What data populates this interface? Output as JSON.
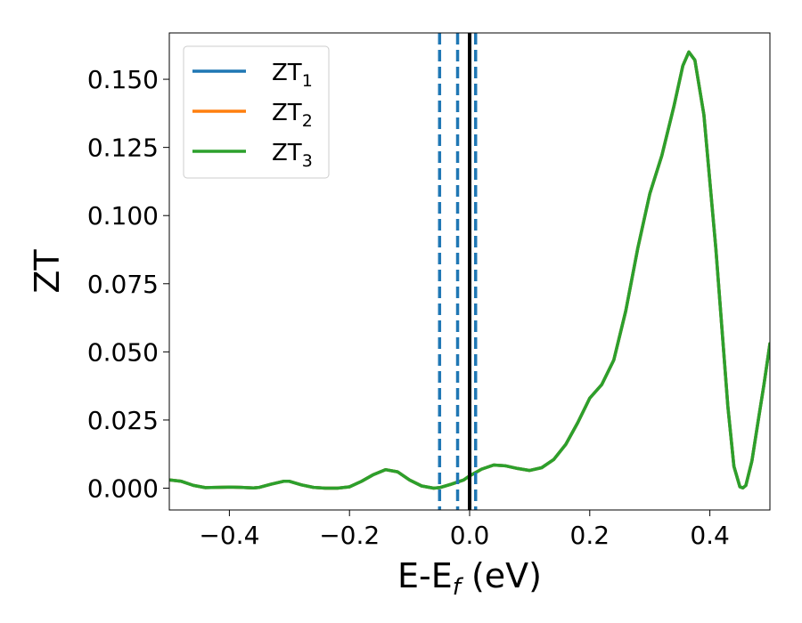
{
  "chart_data": {
    "type": "line",
    "title": "",
    "xlabel": "E-E",
    "xlabel_sub": "f",
    "xlabel_unit": " (eV)",
    "ylabel": "ZT",
    "xlim": [
      -0.5,
      0.5
    ],
    "ylim": [
      -0.008,
      0.167
    ],
    "xticks": [
      -0.4,
      -0.2,
      0.0,
      0.2,
      0.4
    ],
    "xtick_labels": [
      "−0.4",
      "−0.2",
      "0.0",
      "0.2",
      "0.4"
    ],
    "yticks": [
      0.0,
      0.025,
      0.05,
      0.075,
      0.1,
      0.125,
      0.15
    ],
    "ytick_labels": [
      "0.000",
      "0.025",
      "0.050",
      "0.075",
      "0.100",
      "0.125",
      "0.150"
    ],
    "grid": false,
    "legend_position": "top-left",
    "x": [
      -0.5,
      -0.48,
      -0.46,
      -0.44,
      -0.42,
      -0.4,
      -0.38,
      -0.36,
      -0.35,
      -0.33,
      -0.31,
      -0.3,
      -0.28,
      -0.26,
      -0.24,
      -0.22,
      -0.2,
      -0.18,
      -0.16,
      -0.14,
      -0.12,
      -0.1,
      -0.08,
      -0.06,
      -0.05,
      -0.03,
      -0.01,
      0.0,
      0.02,
      0.04,
      0.06,
      0.08,
      0.1,
      0.12,
      0.14,
      0.16,
      0.18,
      0.2,
      0.22,
      0.24,
      0.26,
      0.28,
      0.3,
      0.32,
      0.34,
      0.355,
      0.365,
      0.375,
      0.39,
      0.41,
      0.43,
      0.44,
      0.45,
      0.455,
      0.46,
      0.47,
      0.48,
      0.49,
      0.5
    ],
    "series": [
      {
        "name": "ZT",
        "name_sub": "1",
        "color": "#1f77b4",
        "y": [
          0.003,
          0.0025,
          0.001,
          0.0002,
          0.0003,
          0.0004,
          0.0003,
          0.0001,
          0.0003,
          0.0015,
          0.0025,
          0.0025,
          0.0012,
          0.0003,
          0.0,
          0.0,
          0.0005,
          0.0025,
          0.005,
          0.0068,
          0.006,
          0.003,
          0.0008,
          0.0,
          0.0002,
          0.0015,
          0.003,
          0.0045,
          0.007,
          0.0085,
          0.0082,
          0.0072,
          0.0065,
          0.0075,
          0.0105,
          0.016,
          0.024,
          0.033,
          0.038,
          0.047,
          0.065,
          0.088,
          0.108,
          0.122,
          0.14,
          0.155,
          0.16,
          0.157,
          0.137,
          0.088,
          0.03,
          0.008,
          0.0005,
          0.0001,
          0.001,
          0.01,
          0.024,
          0.038,
          0.053
        ]
      },
      {
        "name": "ZT",
        "name_sub": "2",
        "color": "#ff7f0e",
        "y": [
          0.003,
          0.0025,
          0.001,
          0.0002,
          0.0003,
          0.0004,
          0.0003,
          0.0001,
          0.0003,
          0.0015,
          0.0025,
          0.0025,
          0.0012,
          0.0003,
          0.0,
          0.0,
          0.0005,
          0.0025,
          0.005,
          0.0068,
          0.006,
          0.003,
          0.0008,
          0.0,
          0.0002,
          0.0015,
          0.003,
          0.0045,
          0.007,
          0.0085,
          0.0082,
          0.0072,
          0.0065,
          0.0075,
          0.0105,
          0.016,
          0.024,
          0.033,
          0.038,
          0.047,
          0.065,
          0.088,
          0.108,
          0.122,
          0.14,
          0.155,
          0.16,
          0.157,
          0.137,
          0.088,
          0.03,
          0.008,
          0.0005,
          0.0001,
          0.001,
          0.01,
          0.024,
          0.038,
          0.053
        ]
      },
      {
        "name": "ZT",
        "name_sub": "3",
        "color": "#2ca02c",
        "y": [
          0.003,
          0.0025,
          0.001,
          0.0002,
          0.0003,
          0.0004,
          0.0003,
          0.0001,
          0.0003,
          0.0015,
          0.0025,
          0.0025,
          0.0012,
          0.0003,
          0.0,
          0.0,
          0.0005,
          0.0025,
          0.005,
          0.0068,
          0.006,
          0.003,
          0.0008,
          0.0,
          0.0002,
          0.0015,
          0.003,
          0.0045,
          0.007,
          0.0085,
          0.0082,
          0.0072,
          0.0065,
          0.0075,
          0.0105,
          0.016,
          0.024,
          0.033,
          0.038,
          0.047,
          0.065,
          0.088,
          0.108,
          0.122,
          0.14,
          0.155,
          0.16,
          0.157,
          0.137,
          0.088,
          0.03,
          0.008,
          0.0005,
          0.0001,
          0.001,
          0.01,
          0.024,
          0.038,
          0.053
        ]
      }
    ],
    "vlines": [
      {
        "x": -0.05,
        "style": "dashed",
        "color": "#1f77b4"
      },
      {
        "x": -0.02,
        "style": "dashed",
        "color": "#1f77b4"
      },
      {
        "x": 0.01,
        "style": "dashed",
        "color": "#1f77b4"
      },
      {
        "x": 0.0,
        "style": "solid",
        "color": "#000000"
      }
    ]
  }
}
